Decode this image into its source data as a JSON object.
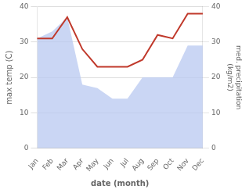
{
  "chart_data": {
    "type": "line",
    "categories": [
      "Jan",
      "Feb",
      "Mar",
      "Apr",
      "May",
      "Jun",
      "Jul",
      "Aug",
      "Sep",
      "Oct",
      "Nov",
      "Dec"
    ],
    "series": [
      {
        "type": "area",
        "color": "#b8c8f0",
        "axis": "y2",
        "values": [
          31,
          33,
          37,
          18,
          17,
          14,
          14,
          20,
          20,
          20,
          29,
          29
        ]
      },
      {
        "type": "line",
        "color": "#c0392b",
        "values": [
          31,
          31,
          37,
          28,
          23,
          23,
          23,
          25,
          32,
          31,
          38,
          38
        ]
      }
    ],
    "xlabel": "date (month)",
    "ylabel": "max temp (C)",
    "y2label": "med. precipitation\n(kg/m2)",
    "ylim": [
      0,
      40
    ],
    "yticks": [
      0,
      10,
      20,
      30,
      40
    ],
    "y2lim": [
      0,
      40
    ],
    "y2ticks": [
      0,
      10,
      20,
      30,
      40
    ],
    "grid": true
  }
}
